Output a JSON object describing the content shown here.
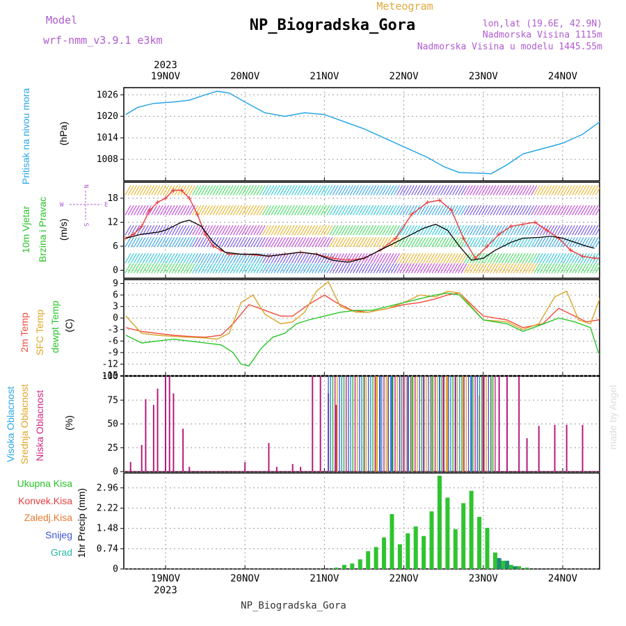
{
  "header": {
    "left_label": "Model",
    "model_name": "wrf-nmm_v3.9.1 e3km",
    "top_center": "Meteogram",
    "title": "NP_Biogradska_Gora",
    "coords": "lon,lat (19.6E, 42.9N)",
    "altitude": "Nadmorska Visina 1115m",
    "model_altitude": "Nadmorska Visina u modelu 1445.55m"
  },
  "footer": {
    "station": "NP_Biogradska_Gora",
    "credit": "made by Angel"
  },
  "time_axis": {
    "year": "2023",
    "dates": [
      "19NOV",
      "20NOV",
      "21NOV",
      "22NOV",
      "23NOV",
      "24NOV"
    ]
  },
  "wind_compass": {
    "north": "N",
    "south": "S",
    "west": "W",
    "east": "E"
  },
  "chart_data": [
    {
      "type": "line",
      "panel": "pressure",
      "ylabel_main": "Pritisak na nivou mora",
      "ylabel_unit": "(hPa)",
      "yticks": [
        "1026",
        "1020",
        "1014",
        "1008"
      ],
      "ylim": [
        1002,
        1028
      ],
      "grid": true,
      "color": "#29a6e6",
      "x": [
        0,
        0.15,
        0.35,
        0.6,
        0.8,
        1.0,
        1.15,
        1.3,
        1.5,
        1.75,
        2.0,
        2.25,
        2.5,
        2.75,
        3.0,
        3.2,
        3.4,
        3.6,
        3.8,
        4.0,
        4.2,
        4.4,
        4.6,
        4.8,
        5.0,
        5.25,
        5.5,
        5.75,
        6.0
      ],
      "values": [
        1020.5,
        1022.5,
        1023.6,
        1024.0,
        1024.5,
        1026.0,
        1027.0,
        1026.5,
        1024.0,
        1021.0,
        1020.0,
        1021.0,
        1020.5,
        1018.5,
        1016.5,
        1014.5,
        1012.5,
        1010.5,
        1008.5,
        1006.0,
        1004.3,
        1004.2,
        1004.0,
        1006.5,
        1009.5,
        1011.0,
        1012.5,
        1015.0,
        1019.0
      ]
    },
    {
      "type": "line",
      "panel": "wind",
      "ylabel_main": "10m Vjetar",
      "ylabel_sub": "Brzina i Pravac",
      "ylabel_unit": "(m/s)",
      "yticks": [
        "18",
        "12",
        "6",
        "0"
      ],
      "ylim": [
        -2,
        22
      ],
      "grid": true,
      "series": [
        {
          "style": "red-plus",
          "color": "#e83a3a",
          "x": [
            0,
            0.1,
            0.2,
            0.3,
            0.4,
            0.5,
            0.6,
            0.7,
            0.8,
            0.9,
            1.0,
            1.1,
            1.2,
            1.3,
            1.5,
            1.8,
            2.0,
            2.2,
            2.4,
            2.6,
            2.8,
            3.0,
            3.2,
            3.4,
            3.6,
            3.8,
            3.95,
            4.1,
            4.25,
            4.4,
            4.55,
            4.7,
            4.85,
            5.0,
            5.15,
            5.3,
            5.45,
            5.6,
            5.75,
            5.9,
            6.0
          ],
          "values": [
            8,
            9,
            11,
            15,
            17,
            18,
            20,
            20,
            18,
            14,
            9,
            6,
            5,
            4,
            4,
            3.5,
            4,
            4.5,
            4,
            3,
            2.5,
            3,
            5,
            8,
            14,
            17,
            17.5,
            15,
            8,
            3,
            6,
            9,
            11,
            11.5,
            12,
            10,
            8,
            5,
            3.5,
            3,
            3
          ]
        },
        {
          "style": "black-line",
          "color": "#000000",
          "x": [
            0,
            0.2,
            0.4,
            0.5,
            0.6,
            0.7,
            0.8,
            0.95,
            1.1,
            1.25,
            1.45,
            1.65,
            1.8,
            2.0,
            2.2,
            2.4,
            2.6,
            2.8,
            3.0,
            3.15,
            3.3,
            3.45,
            3.6,
            3.75,
            3.9,
            4.05,
            4.2,
            4.35,
            4.5,
            4.65,
            4.85,
            5.0,
            5.2,
            5.35,
            5.5,
            5.65,
            5.8,
            5.9
          ],
          "values": [
            8,
            9,
            9.5,
            10,
            11,
            12,
            12.5,
            11,
            7,
            4.5,
            4,
            4,
            3.5,
            4,
            4.5,
            4,
            2.5,
            2,
            3,
            4.5,
            6,
            7.5,
            9,
            10.5,
            11.5,
            10,
            6,
            2.5,
            3,
            5,
            7,
            8,
            8.2,
            8.5,
            8,
            7,
            6,
            5.5
          ]
        }
      ],
      "barb_bands": [
        {
          "color_hint": "lime-cyan-purple",
          "level": 0.5
        },
        {
          "color_hint": "cyan-blue-purple",
          "level": 3
        },
        {
          "color_hint": "cyan-blue-purple",
          "level": 7
        },
        {
          "color_hint": "cyan-blue-purple",
          "level": 10
        },
        {
          "color_hint": "cyan-blue-purple",
          "level": 15
        },
        {
          "color_hint": "cyan-blue-purple",
          "level": 20
        }
      ]
    },
    {
      "type": "line",
      "panel": "temperature",
      "ylabel_red": "2m Temp",
      "ylabel_orange": "SFC Temp",
      "ylabel_green": "dewpt Temp",
      "ylabel_unit": "(C)",
      "yticks": [
        "9",
        "6",
        "3",
        "0",
        "-3",
        "-6",
        "-9",
        "-12",
        "-15"
      ],
      "ylim": [
        -15,
        10
      ],
      "grid": true,
      "series": [
        {
          "style": "2m",
          "color": "#f04a3a",
          "x": [
            0,
            0.2,
            0.4,
            0.6,
            0.8,
            1.0,
            1.2,
            1.35,
            1.55,
            1.75,
            1.95,
            2.1,
            2.3,
            2.5,
            2.65,
            2.85,
            3.05,
            3.3,
            3.5,
            3.7,
            3.9,
            4.05,
            4.2,
            4.5,
            4.8,
            5.0,
            5.25,
            5.45,
            5.65,
            5.8,
            5.95,
            6.0
          ],
          "values": [
            -2.5,
            -3.5,
            -4,
            -4.5,
            -4.8,
            -5,
            -4.5,
            -1.5,
            3.5,
            2,
            0.5,
            0.5,
            3.5,
            6,
            4,
            2,
            1.5,
            2.5,
            3.5,
            4,
            5,
            6,
            6.5,
            0.5,
            -0.5,
            -2.5,
            -1.5,
            2.5,
            0.5,
            -1,
            -0.5,
            1
          ]
        },
        {
          "style": "sfc",
          "color": "#d8a42a",
          "x": [
            0,
            0.2,
            0.4,
            0.6,
            0.8,
            1.0,
            1.15,
            1.3,
            1.45,
            1.6,
            1.75,
            1.95,
            2.1,
            2.25,
            2.4,
            2.55,
            2.7,
            2.9,
            3.05,
            3.3,
            3.5,
            3.7,
            3.9,
            4.05,
            4.2,
            4.5,
            4.8,
            5.0,
            5.2,
            5.4,
            5.55,
            5.7,
            5.85,
            6.0
          ],
          "values": [
            0.5,
            -4,
            -4.5,
            -4.8,
            -5,
            -5.2,
            -5.5,
            -4,
            4,
            6,
            1,
            -1.5,
            -1,
            1.5,
            7,
            9.5,
            3,
            1.5,
            1.5,
            2.5,
            4,
            6,
            5.5,
            7,
            6.5,
            -0.5,
            -1,
            -3,
            -1.5,
            5.5,
            7,
            -0.5,
            -1.5,
            7
          ]
        },
        {
          "style": "dewpt",
          "color": "#27c427",
          "x": [
            0,
            0.2,
            0.4,
            0.6,
            0.8,
            1.0,
            1.2,
            1.35,
            1.45,
            1.55,
            1.7,
            1.85,
            2.0,
            2.15,
            2.3,
            2.5,
            2.7,
            2.9,
            3.1,
            3.3,
            3.5,
            3.7,
            3.9,
            4.05,
            4.2,
            4.5,
            4.8,
            5.0,
            5.2,
            5.45,
            5.65,
            5.85,
            5.95,
            6.0
          ],
          "values": [
            -4.5,
            -6.5,
            -6,
            -5.5,
            -6,
            -6.5,
            -7,
            -9,
            -12,
            -12.5,
            -8,
            -5,
            -4,
            -1.5,
            -0.5,
            0.5,
            1.5,
            2,
            2,
            3,
            4,
            5,
            6,
            6.5,
            6,
            -0.5,
            -1.5,
            -3.5,
            -2,
            0,
            -1,
            -2.5,
            -9,
            -10.5
          ]
        }
      ]
    },
    {
      "type": "bar",
      "panel": "cloud_cover",
      "ylabel_blue": "Visoka Oblacnost",
      "ylabel_orange": "Srednja Oblacnost",
      "ylabel_magenta": "Niska Oblacnost",
      "ylabel_unit": "(%)",
      "yticks": [
        "100",
        "75",
        "50",
        "25",
        "0"
      ],
      "ylim": [
        0,
        100
      ],
      "grid": true,
      "series": [
        {
          "name": "",
          "color": "#b8197a",
          "x": [
            0.06,
            0.2,
            0.25,
            0.35,
            0.4,
            0.5,
            0.55,
            0.6,
            0.72,
            0.8,
            1.5,
            1.8,
            1.9,
            2.1,
            2.2,
            2.35,
            2.45,
            2.55,
            2.65,
            3.0,
            3.5,
            4.0,
            4.5,
            4.7,
            4.8,
            4.95,
            5.05,
            5.2,
            5.4,
            5.55,
            5.75
          ],
          "values": [
            10,
            28,
            76,
            70,
            87,
            100,
            100,
            82,
            45,
            5,
            10,
            30,
            5,
            8,
            5,
            100,
            100,
            82,
            70,
            100,
            100,
            100,
            100,
            100,
            100,
            100,
            35,
            48,
            49,
            49,
            49
          ]
        },
        {
          "name": "",
          "color": "#e0a524",
          "x": [
            3.15,
            3.3,
            3.45,
            3.6,
            3.85,
            4.05,
            4.25,
            4.45,
            4.6
          ],
          "values": [
            100,
            100,
            100,
            100,
            100,
            100,
            100,
            80,
            100
          ]
        },
        {
          "name": "",
          "color": "#3b54d8",
          "x": [
            3.2,
            3.35,
            3.55,
            3.75,
            3.95,
            4.15,
            4.35
          ],
          "values": [
            100,
            100,
            100,
            100,
            100,
            100,
            100
          ]
        }
      ]
    },
    {
      "type": "bar",
      "panel": "precipitation",
      "legend_total": "Ukupna Kisa",
      "legend_conv": "Konvek.Kisa",
      "legend_frz": "Zaledj.Kisa",
      "legend_snow": "Snijeg",
      "legend_grad": "Grad",
      "ylabel": "1hr Precip (mm)",
      "yticks": [
        "2.96",
        "2.22",
        "1.48",
        "0.74",
        "0"
      ],
      "ylim": [
        0,
        3.5
      ],
      "grid": true,
      "series": [
        {
          "name": "",
          "color": "#2fc42f",
          "x": [
            2.65,
            2.75,
            2.85,
            2.95,
            3.05,
            3.15,
            3.25,
            3.35,
            3.45,
            3.55,
            3.65,
            3.75,
            3.85,
            3.95,
            4.05,
            4.15,
            4.25,
            4.35,
            4.45,
            4.55,
            4.65,
            4.75,
            4.85,
            4.95,
            5.05
          ],
          "values": [
            0.05,
            0.15,
            0.2,
            0.35,
            0.65,
            0.8,
            1.15,
            2.0,
            0.9,
            1.3,
            1.55,
            1.2,
            2.1,
            3.4,
            2.6,
            1.45,
            2.4,
            2.85,
            1.9,
            1.5,
            0.6,
            0.3,
            0.15,
            0.1,
            0.05
          ]
        },
        {
          "name": "",
          "color": "#1e8a7a",
          "x": [
            4.7,
            4.8,
            4.9
          ],
          "values": [
            0.4,
            0.3,
            0.1
          ]
        }
      ]
    }
  ]
}
